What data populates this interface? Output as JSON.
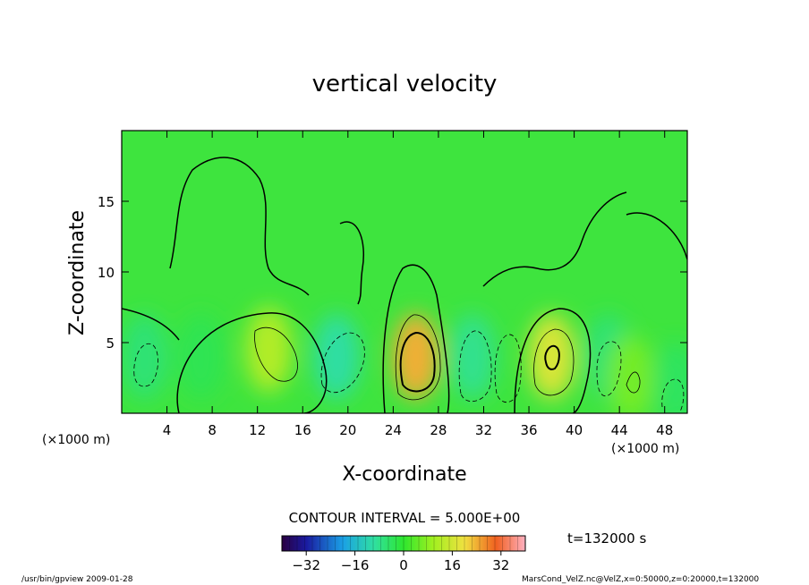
{
  "chart_data": {
    "type": "heatmap",
    "title": "vertical velocity",
    "xlabel": "X-coordinate",
    "ylabel": "Z-coordinate",
    "x_unit_left": "(×1000 m)",
    "x_unit_right": "(×1000 m)",
    "xlim": [
      0,
      50
    ],
    "ylim": [
      0,
      20
    ],
    "x_ticks": [
      4,
      8,
      12,
      16,
      20,
      24,
      28,
      32,
      36,
      40,
      44,
      48
    ],
    "y_ticks": [
      5,
      10,
      15
    ],
    "contour_interval_label": "CONTOUR INTERVAL = 5.000E+00",
    "time_label": "t=132000 s",
    "colorbar": {
      "min": -40,
      "max": 40,
      "ticks": [
        -32,
        -16,
        0,
        16,
        32
      ]
    },
    "footer_left": "/usr/bin/gpview   2009-01-28",
    "footer_right": "MarsCond_VelZ.nc@VelZ,x=0:50000,z=0:20000,t=132000",
    "cells": [
      {
        "x": 2,
        "z": 4,
        "w": -6
      },
      {
        "x": 7,
        "z": 4,
        "w": -3
      },
      {
        "x": 13,
        "z": 4.5,
        "w": 12
      },
      {
        "x": 19,
        "z": 4,
        "w": -10
      },
      {
        "x": 26,
        "z": 4,
        "w": 24
      },
      {
        "x": 31,
        "z": 4,
        "w": -8
      },
      {
        "x": 38,
        "z": 4,
        "w": 17
      },
      {
        "x": 43,
        "z": 4,
        "w": -6
      },
      {
        "x": 45,
        "z": 2.5,
        "w": 6
      },
      {
        "x": 49,
        "z": 2,
        "w": -4
      }
    ]
  }
}
